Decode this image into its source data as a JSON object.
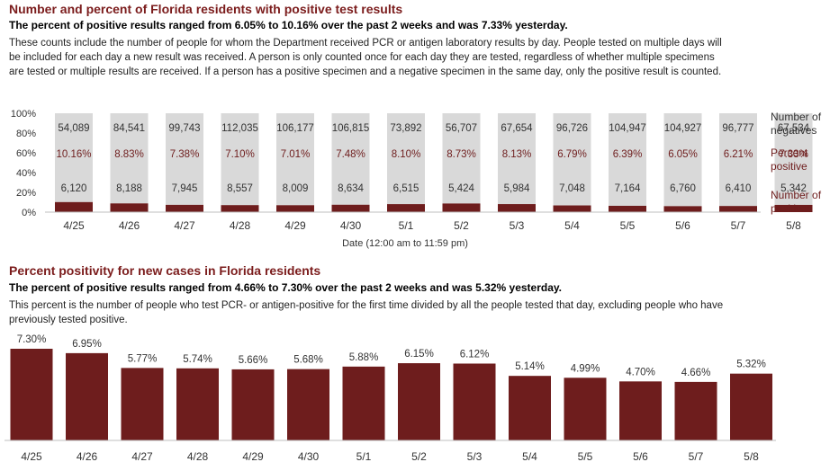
{
  "section1": {
    "title": "Number and percent of Florida residents with positive test results",
    "subtitle": "The percent of positive results ranged from 6.05% to 10.16% over the past 2 weeks and was 7.33% yesterday.",
    "description": "These counts include the number of people for whom the Department received PCR or antigen laboratory results by day. People tested on multiple days will be included for each day a new result was received. A person is only counted once for each day they are tested, regardless of whether multiple specimens are tested or multiple results are received. If a person has a positive specimen and a negative specimen in the same day, only the positive result is counted."
  },
  "section2": {
    "title": "Percent positivity for new cases in Florida residents",
    "subtitle": "The percent of positive results ranged from 4.66% to 7.30% over the past 2 weeks and was 5.32% yesterday.",
    "description": "This percent is the number of people who test PCR- or antigen-positive for the first time divided by all the people tested that day, excluding people who have previously tested positive."
  },
  "colors": {
    "dark_red": "#6e1d1d",
    "title_red": "#7b1c1c",
    "light_gray": "#d9d9d9"
  },
  "chart_data": [
    {
      "type": "bar",
      "stacked": true,
      "categories": [
        "4/25",
        "4/26",
        "4/27",
        "4/28",
        "4/29",
        "4/30",
        "5/1",
        "5/2",
        "5/3",
        "5/4",
        "5/5",
        "5/6",
        "5/7",
        "5/8"
      ],
      "y_tick_labels": [
        "100%",
        "80%",
        "60%",
        "40%",
        "20%",
        "0%"
      ],
      "ylim": [
        0,
        100
      ],
      "xlabel": "Date (12:00 am to 11:59 pm)",
      "negatives_label": "Number of negatives",
      "percent_label": "Percent positive",
      "positives_label": "Number of positives",
      "negatives": [
        "54,089",
        "84,541",
        "99,743",
        "112,035",
        "106,177",
        "106,815",
        "73,892",
        "56,707",
        "67,654",
        "96,726",
        "104,947",
        "104,927",
        "96,777",
        "67,534"
      ],
      "percent_positive": [
        "10.16%",
        "8.83%",
        "7.38%",
        "7.10%",
        "7.01%",
        "7.48%",
        "8.10%",
        "8.73%",
        "8.13%",
        "6.79%",
        "6.39%",
        "6.05%",
        "6.21%",
        "7.33%"
      ],
      "percent_values": [
        10.16,
        8.83,
        7.38,
        7.1,
        7.01,
        7.48,
        8.1,
        8.73,
        8.13,
        6.79,
        6.39,
        6.05,
        6.21,
        7.33
      ],
      "positives": [
        "6,120",
        "8,188",
        "7,945",
        "8,557",
        "8,009",
        "8,634",
        "6,515",
        "5,424",
        "5,984",
        "7,048",
        "7,164",
        "6,760",
        "6,410",
        "5,342"
      ]
    },
    {
      "type": "bar",
      "categories": [
        "4/25",
        "4/26",
        "4/27",
        "4/28",
        "4/29",
        "4/30",
        "5/1",
        "5/2",
        "5/3",
        "5/4",
        "5/5",
        "5/6",
        "5/7",
        "5/8"
      ],
      "values": [
        7.3,
        6.95,
        5.77,
        5.74,
        5.66,
        5.68,
        5.88,
        6.15,
        6.12,
        5.14,
        4.99,
        4.7,
        4.66,
        5.32
      ],
      "value_labels": [
        "7.30%",
        "6.95%",
        "5.77%",
        "5.74%",
        "5.66%",
        "5.68%",
        "5.88%",
        "6.15%",
        "6.12%",
        "5.14%",
        "4.99%",
        "4.70%",
        "4.66%",
        "5.32%"
      ],
      "ylim": [
        0,
        7.3
      ]
    }
  ]
}
